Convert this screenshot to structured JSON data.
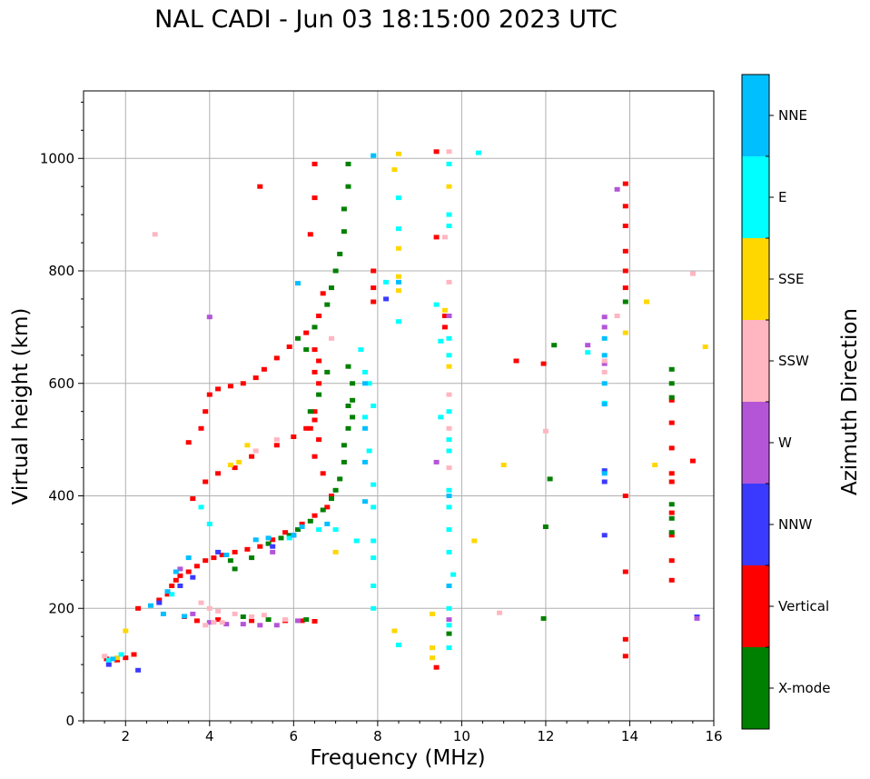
{
  "chart_data": {
    "type": "scatter",
    "title": "NAL CADI - Jun 03 18:15:00 2023 UTC",
    "xlabel": "Frequency (MHz)",
    "ylabel": "Virtual height (km)",
    "xlim": [
      1,
      16
    ],
    "ylim": [
      0,
      1120
    ],
    "xticks": [
      2,
      4,
      6,
      8,
      10,
      12,
      14,
      16
    ],
    "yticks": [
      0,
      200,
      400,
      600,
      800,
      1000
    ],
    "grid": true,
    "colorbar": {
      "label": "Azimuth Direction",
      "categories": [
        "X-mode",
        "Vertical",
        "NNW",
        "W",
        "SSW",
        "SSE",
        "E",
        "NNE"
      ],
      "colors": [
        "#008000",
        "#ff0000",
        "#3a3aff",
        "#b455d8",
        "#ffb6c1",
        "#ffd700",
        "#00ffff",
        "#00bfff"
      ]
    },
    "series": [
      {
        "name": "Vertical",
        "color": "#ff0000",
        "points": [
          [
            1.55,
            110
          ],
          [
            1.8,
            108
          ],
          [
            2.0,
            112
          ],
          [
            2.2,
            118
          ],
          [
            2.3,
            200
          ],
          [
            2.8,
            215
          ],
          [
            3.0,
            225
          ],
          [
            3.1,
            240
          ],
          [
            3.2,
            250
          ],
          [
            3.3,
            258
          ],
          [
            3.5,
            265
          ],
          [
            3.7,
            275
          ],
          [
            3.9,
            285
          ],
          [
            4.1,
            290
          ],
          [
            4.3,
            295
          ],
          [
            4.6,
            300
          ],
          [
            4.9,
            305
          ],
          [
            5.2,
            310
          ],
          [
            5.5,
            322
          ],
          [
            5.8,
            335
          ],
          [
            6.2,
            350
          ],
          [
            6.5,
            365
          ],
          [
            3.4,
            185
          ],
          [
            3.7,
            178
          ],
          [
            4.2,
            180
          ],
          [
            5.0,
            178
          ],
          [
            5.8,
            178
          ],
          [
            6.2,
            178
          ],
          [
            6.5,
            177
          ],
          [
            3.6,
            395
          ],
          [
            3.9,
            425
          ],
          [
            4.2,
            440
          ],
          [
            4.6,
            450
          ],
          [
            5.0,
            470
          ],
          [
            5.6,
            490
          ],
          [
            6.0,
            505
          ],
          [
            6.3,
            520
          ],
          [
            6.5,
            535
          ],
          [
            3.5,
            495
          ],
          [
            3.8,
            520
          ],
          [
            3.9,
            550
          ],
          [
            4.0,
            580
          ],
          [
            4.2,
            590
          ],
          [
            4.5,
            595
          ],
          [
            4.8,
            600
          ],
          [
            5.1,
            610
          ],
          [
            5.3,
            625
          ],
          [
            5.6,
            645
          ],
          [
            5.9,
            665
          ],
          [
            6.3,
            690
          ],
          [
            6.6,
            720
          ],
          [
            6.7,
            760
          ],
          [
            6.4,
            865
          ],
          [
            6.5,
            990
          ],
          [
            6.5,
            930
          ],
          [
            5.2,
            950
          ],
          [
            6.6,
            600
          ],
          [
            6.5,
            620
          ],
          [
            6.6,
            640
          ],
          [
            6.5,
            660
          ],
          [
            6.6,
            500
          ],
          [
            6.5,
            470
          ],
          [
            6.7,
            440
          ],
          [
            6.9,
            400
          ],
          [
            6.8,
            380
          ],
          [
            6.4,
            520
          ],
          [
            6.5,
            550
          ],
          [
            9.4,
            95
          ],
          [
            9.4,
            860
          ],
          [
            9.4,
            1012
          ],
          [
            7.9,
            800
          ],
          [
            7.9,
            770
          ],
          [
            7.9,
            745
          ],
          [
            11.3,
            640
          ],
          [
            11.95,
            635
          ],
          [
            13.9,
            955
          ],
          [
            13.9,
            915
          ],
          [
            13.9,
            880
          ],
          [
            13.9,
            835
          ],
          [
            13.9,
            800
          ],
          [
            13.9,
            770
          ],
          [
            13.9,
            400
          ],
          [
            13.9,
            265
          ],
          [
            13.9,
            145
          ],
          [
            13.9,
            115
          ],
          [
            15.0,
            250
          ],
          [
            15.0,
            285
          ],
          [
            15.0,
            330
          ],
          [
            15.0,
            370
          ],
          [
            15.0,
            425
          ],
          [
            15.0,
            440
          ],
          [
            15.0,
            485
          ],
          [
            15.0,
            530
          ],
          [
            15.0,
            570
          ],
          [
            15.5,
            462
          ],
          [
            9.6,
            720
          ],
          [
            9.6,
            700
          ]
        ]
      },
      {
        "name": "X-mode",
        "color": "#008000",
        "points": [
          [
            4.5,
            285
          ],
          [
            4.6,
            270
          ],
          [
            5.0,
            290
          ],
          [
            5.4,
            315
          ],
          [
            5.7,
            325
          ],
          [
            5.9,
            330
          ],
          [
            6.1,
            340
          ],
          [
            6.4,
            355
          ],
          [
            6.7,
            375
          ],
          [
            6.9,
            395
          ],
          [
            7.0,
            410
          ],
          [
            7.1,
            430
          ],
          [
            7.2,
            460
          ],
          [
            7.2,
            490
          ],
          [
            7.3,
            520
          ],
          [
            7.3,
            560
          ],
          [
            7.4,
            600
          ],
          [
            7.3,
            630
          ],
          [
            6.4,
            550
          ],
          [
            6.6,
            580
          ],
          [
            6.8,
            620
          ],
          [
            6.3,
            660
          ],
          [
            6.1,
            680
          ],
          [
            6.5,
            700
          ],
          [
            6.8,
            740
          ],
          [
            6.9,
            770
          ],
          [
            7.0,
            800
          ],
          [
            7.1,
            830
          ],
          [
            7.2,
            870
          ],
          [
            7.2,
            910
          ],
          [
            7.3,
            950
          ],
          [
            7.3,
            990
          ],
          [
            4.8,
            185
          ],
          [
            5.4,
            180
          ],
          [
            6.3,
            180
          ],
          [
            7.4,
            570
          ],
          [
            7.4,
            540
          ],
          [
            11.95,
            182
          ],
          [
            12.0,
            345
          ],
          [
            12.1,
            430
          ],
          [
            12.2,
            668
          ],
          [
            15.0,
            335
          ],
          [
            15.0,
            360
          ],
          [
            15.0,
            385
          ],
          [
            15.0,
            600
          ],
          [
            15.0,
            625
          ],
          [
            15.0,
            575
          ],
          [
            9.7,
            155
          ],
          [
            13.9,
            745
          ]
        ]
      },
      {
        "name": "NNW",
        "color": "#3a3aff",
        "points": [
          [
            1.6,
            100
          ],
          [
            2.3,
            90
          ],
          [
            2.8,
            210
          ],
          [
            3.3,
            240
          ],
          [
            3.6,
            255
          ],
          [
            4.2,
            300
          ],
          [
            5.5,
            310
          ],
          [
            6.0,
            330
          ],
          [
            8.2,
            750
          ],
          [
            13.4,
            330
          ],
          [
            13.4,
            445
          ],
          [
            13.4,
            425
          ],
          [
            15.6,
            185
          ]
        ]
      },
      {
        "name": "W",
        "color": "#b455d8",
        "points": [
          [
            3.3,
            270
          ],
          [
            3.6,
            190
          ],
          [
            4.0,
            175
          ],
          [
            4.4,
            172
          ],
          [
            4.8,
            172
          ],
          [
            5.2,
            170
          ],
          [
            5.6,
            170
          ],
          [
            6.1,
            178
          ],
          [
            5.5,
            300
          ],
          [
            4.0,
            718
          ],
          [
            9.7,
            720
          ],
          [
            13.4,
            700
          ],
          [
            13.4,
            718
          ],
          [
            13.0,
            668
          ],
          [
            13.7,
            945
          ],
          [
            13.4,
            635
          ],
          [
            15.6,
            182
          ],
          [
            9.7,
            180
          ],
          [
            9.4,
            460
          ]
        ]
      },
      {
        "name": "SSW",
        "color": "#ffb6c1",
        "points": [
          [
            1.5,
            115
          ],
          [
            2.7,
            865
          ],
          [
            3.8,
            210
          ],
          [
            4.0,
            200
          ],
          [
            4.2,
            195
          ],
          [
            4.6,
            190
          ],
          [
            5.0,
            185
          ],
          [
            5.3,
            188
          ],
          [
            5.8,
            180
          ],
          [
            4.1,
            175
          ],
          [
            4.3,
            175
          ],
          [
            3.9,
            170
          ],
          [
            5.1,
            480
          ],
          [
            5.6,
            500
          ],
          [
            6.9,
            680
          ],
          [
            9.7,
            1012
          ],
          [
            9.7,
            580
          ],
          [
            9.7,
            520
          ],
          [
            9.7,
            450
          ],
          [
            10.9,
            192
          ],
          [
            12.0,
            515
          ],
          [
            13.4,
            620
          ],
          [
            13.4,
            640
          ],
          [
            15.5,
            795
          ],
          [
            13.7,
            720
          ],
          [
            9.6,
            860
          ],
          [
            9.7,
            780
          ]
        ]
      },
      {
        "name": "SSE",
        "color": "#ffd700",
        "points": [
          [
            1.8,
            112
          ],
          [
            2.0,
            160
          ],
          [
            4.7,
            460
          ],
          [
            4.9,
            490
          ],
          [
            4.5,
            455
          ],
          [
            7.0,
            300
          ],
          [
            8.5,
            1008
          ],
          [
            8.4,
            980
          ],
          [
            8.5,
            840
          ],
          [
            8.5,
            790
          ],
          [
            8.5,
            765
          ],
          [
            8.4,
            160
          ],
          [
            9.3,
            190
          ],
          [
            9.3,
            130
          ],
          [
            9.3,
            112
          ],
          [
            9.7,
            950
          ],
          [
            9.7,
            630
          ],
          [
            10.3,
            320
          ],
          [
            11.0,
            455
          ],
          [
            13.9,
            690
          ],
          [
            14.4,
            745
          ],
          [
            14.6,
            455
          ],
          [
            15.8,
            665
          ],
          [
            9.6,
            730
          ]
        ]
      },
      {
        "name": "E",
        "color": "#00ffff",
        "points": [
          [
            1.6,
            108
          ],
          [
            1.9,
            118
          ],
          [
            3.1,
            225
          ],
          [
            3.8,
            380
          ],
          [
            4.0,
            350
          ],
          [
            5.9,
            325
          ],
          [
            6.6,
            340
          ],
          [
            7.0,
            340
          ],
          [
            7.5,
            320
          ],
          [
            7.7,
            540
          ],
          [
            7.7,
            620
          ],
          [
            7.6,
            660
          ],
          [
            7.8,
            600
          ],
          [
            7.9,
            560
          ],
          [
            7.8,
            480
          ],
          [
            7.9,
            420
          ],
          [
            7.9,
            380
          ],
          [
            7.9,
            320
          ],
          [
            7.9,
            290
          ],
          [
            7.9,
            240
          ],
          [
            7.9,
            200
          ],
          [
            7.9,
            1005
          ],
          [
            8.5,
            875
          ],
          [
            8.5,
            930
          ],
          [
            8.5,
            710
          ],
          [
            8.2,
            780
          ],
          [
            8.5,
            135
          ],
          [
            9.7,
            170
          ],
          [
            9.7,
            130
          ],
          [
            9.7,
            200
          ],
          [
            9.8,
            260
          ],
          [
            9.7,
            300
          ],
          [
            9.7,
            340
          ],
          [
            9.7,
            380
          ],
          [
            9.7,
            410
          ],
          [
            9.7,
            480
          ],
          [
            9.7,
            500
          ],
          [
            9.7,
            550
          ],
          [
            9.7,
            650
          ],
          [
            9.7,
            680
          ],
          [
            9.7,
            880
          ],
          [
            9.7,
            900
          ],
          [
            9.7,
            990
          ],
          [
            9.5,
            540
          ],
          [
            9.5,
            675
          ],
          [
            10.4,
            1010
          ],
          [
            9.4,
            740
          ],
          [
            13.4,
            565
          ],
          [
            13.0,
            655
          ]
        ]
      },
      {
        "name": "NNE",
        "color": "#00bfff",
        "points": [
          [
            1.7,
            110
          ],
          [
            2.6,
            205
          ],
          [
            3.0,
            230
          ],
          [
            3.2,
            265
          ],
          [
            3.5,
            290
          ],
          [
            4.4,
            295
          ],
          [
            5.1,
            322
          ],
          [
            5.4,
            325
          ],
          [
            6.0,
            330
          ],
          [
            6.2,
            345
          ],
          [
            6.8,
            350
          ],
          [
            7.7,
            600
          ],
          [
            7.7,
            520
          ],
          [
            7.7,
            460
          ],
          [
            7.7,
            390
          ],
          [
            6.1,
            778
          ],
          [
            7.9,
            1005
          ],
          [
            13.4,
            440
          ],
          [
            13.4,
            563
          ],
          [
            13.4,
            600
          ],
          [
            13.4,
            650
          ],
          [
            13.4,
            680
          ],
          [
            8.5,
            780
          ],
          [
            9.7,
            400
          ],
          [
            9.7,
            240
          ],
          [
            3.4,
            186
          ],
          [
            2.9,
            190
          ]
        ]
      }
    ]
  }
}
